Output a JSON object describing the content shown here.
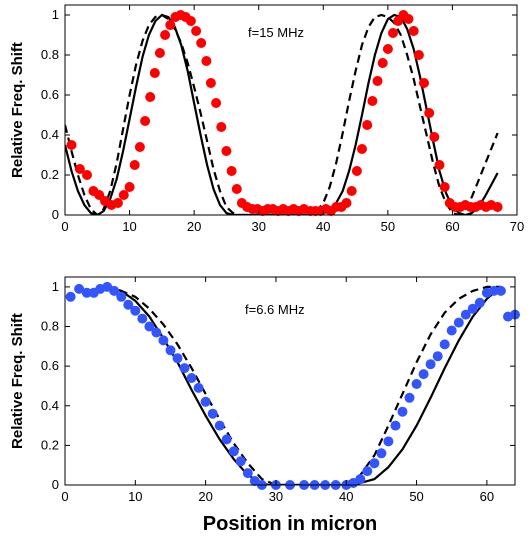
{
  "chart_data": [
    {
      "type": "line",
      "ylabel": "Relative Freq. Shift",
      "xlabel": "",
      "annotation": "f=15 MHz",
      "xlim": [
        0,
        70
      ],
      "ylim": [
        0,
        1.05
      ],
      "xticks": [
        "0",
        "10",
        "20",
        "30",
        "40",
        "50",
        "60",
        "70"
      ],
      "yticks": [
        "0",
        "0.2",
        "0.4",
        "0.6",
        "0.8",
        "1"
      ],
      "xtick_values": [
        0,
        10,
        20,
        30,
        40,
        50,
        60,
        70
      ],
      "ytick_values": [
        0,
        0.2,
        0.4,
        0.6,
        0.8,
        1
      ],
      "grid": false,
      "colors": {
        "marker": "#ff0000",
        "solid": "#000000",
        "dashed": "#000000"
      },
      "series": [
        {
          "style": "solid",
          "x": [
            0,
            1,
            2,
            3,
            4,
            5,
            6,
            7,
            8,
            9,
            10,
            11,
            12,
            13,
            14,
            15,
            16,
            17,
            18,
            19,
            20,
            21,
            22,
            23,
            24,
            25,
            26,
            27,
            28,
            29,
            30,
            31,
            32,
            33,
            34,
            35,
            36,
            37,
            38,
            39,
            40,
            41,
            42,
            43,
            44,
            45,
            46,
            47,
            48,
            49,
            50,
            51,
            52,
            53,
            54,
            55,
            56,
            57,
            58,
            59,
            60,
            61,
            62,
            63,
            64,
            65,
            66,
            67
          ],
          "y": [
            0.35,
            0.22,
            0.12,
            0.05,
            0.01,
            0,
            0.02,
            0.08,
            0.18,
            0.32,
            0.48,
            0.64,
            0.79,
            0.9,
            0.97,
            1,
            0.99,
            0.94,
            0.85,
            0.72,
            0.56,
            0.4,
            0.25,
            0.13,
            0.05,
            0.01,
            0,
            0,
            0,
            0,
            0,
            0,
            0,
            0,
            0,
            0,
            0,
            0,
            0,
            0,
            0.01,
            0.02,
            0.06,
            0.12,
            0.22,
            0.35,
            0.5,
            0.66,
            0.8,
            0.91,
            0.98,
            1,
            0.99,
            0.93,
            0.83,
            0.69,
            0.53,
            0.37,
            0.22,
            0.11,
            0.04,
            0.01,
            0,
            0.01,
            0.04,
            0.09,
            0.15,
            0.21
          ]
        },
        {
          "style": "dashed",
          "x": [
            0,
            1,
            2,
            3,
            4,
            5,
            6,
            7,
            8,
            9,
            10,
            11,
            12,
            13,
            14,
            15,
            16,
            17,
            18,
            19,
            20,
            21,
            22,
            23,
            24,
            25,
            26,
            27,
            28,
            29,
            30,
            31,
            32,
            33,
            34,
            35,
            36,
            37,
            38,
            39,
            40,
            41,
            42,
            43,
            44,
            45,
            46,
            47,
            48,
            49,
            50,
            51,
            52,
            53,
            54,
            55,
            56,
            57,
            58,
            59,
            60,
            61,
            62,
            63,
            64,
            65,
            66,
            67
          ],
          "y": [
            0.45,
            0.32,
            0.2,
            0.1,
            0.03,
            0,
            0.03,
            0.12,
            0.26,
            0.43,
            0.6,
            0.75,
            0.87,
            0.95,
            0.99,
            1,
            0.98,
            0.93,
            0.86,
            0.76,
            0.64,
            0.51,
            0.37,
            0.23,
            0.12,
            0.04,
            0.01,
            0,
            0,
            0,
            0,
            0,
            0,
            0,
            0,
            0,
            0,
            0,
            0,
            0.02,
            0.06,
            0.14,
            0.26,
            0.41,
            0.57,
            0.72,
            0.85,
            0.94,
            0.99,
            1,
            0.99,
            0.96,
            0.9,
            0.8,
            0.68,
            0.54,
            0.4,
            0.26,
            0.14,
            0.06,
            0.01,
            0,
            0.03,
            0.09,
            0.17,
            0.25,
            0.33,
            0.41
          ]
        },
        {
          "style": "marker",
          "x": [
            1,
            2.3,
            3.4,
            4.4,
            5.3,
            6.2,
            7.2,
            8.2,
            9.1,
            10,
            10.8,
            11.6,
            12.4,
            13.2,
            13.9,
            14.7,
            15.5,
            16.3,
            17.1,
            17.9,
            18.7,
            19.5,
            20.3,
            21.1,
            21.9,
            22.6,
            23.4,
            24.2,
            25,
            25.8,
            26.6,
            27.4,
            28.2,
            29,
            29.8,
            30.6,
            31.4,
            32.2,
            33,
            33.8,
            34.6,
            35.4,
            36.2,
            37,
            38,
            38.8,
            39.6,
            40.4,
            41.2,
            42,
            42.8,
            43.6,
            44.4,
            45.2,
            46,
            46.8,
            47.6,
            48.4,
            49.2,
            50,
            50.8,
            51.6,
            52.4,
            53.2,
            54,
            54.8,
            55.6,
            56.4,
            57.2,
            58,
            58.8,
            59.6,
            60.4,
            61.2,
            62,
            62.8,
            63.6,
            64.4,
            65.2,
            66,
            67
          ],
          "y": [
            0.35,
            0.23,
            0.2,
            0.12,
            0.1,
            0.07,
            0.05,
            0.06,
            0.1,
            0.14,
            0.25,
            0.34,
            0.47,
            0.59,
            0.71,
            0.81,
            0.9,
            0.95,
            0.99,
            1,
            0.99,
            0.97,
            0.92,
            0.86,
            0.77,
            0.66,
            0.56,
            0.44,
            0.32,
            0.22,
            0.13,
            0.06,
            0.04,
            0.03,
            0.03,
            0.02,
            0.03,
            0.03,
            0.02,
            0.03,
            0.02,
            0.03,
            0.02,
            0.03,
            0.02,
            0.02,
            0.02,
            0.03,
            0.02,
            0.04,
            0.04,
            0.06,
            0.12,
            0.22,
            0.33,
            0.45,
            0.57,
            0.67,
            0.76,
            0.83,
            0.91,
            0.97,
            1,
            0.98,
            0.92,
            0.8,
            0.66,
            0.51,
            0.39,
            0.25,
            0.14,
            0.06,
            0.04,
            0.04,
            0.05,
            0.04,
            0.04,
            0.05,
            0.04,
            0.05,
            0.04
          ]
        }
      ]
    },
    {
      "type": "line",
      "ylabel": "Relative Freq. Shift",
      "xlabel": "Position in micron",
      "annotation": "f=6.6 MHz",
      "xlim": [
        0,
        64
      ],
      "ylim": [
        0,
        1.05
      ],
      "xticks": [
        "0",
        "10",
        "20",
        "30",
        "40",
        "50",
        "60"
      ],
      "yticks": [
        "0",
        "0.2",
        "0.4",
        "0.6",
        "0.8",
        "1"
      ],
      "xtick_values": [
        0,
        10,
        20,
        30,
        40,
        50,
        60
      ],
      "ytick_values": [
        0,
        0.2,
        0.4,
        0.6,
        0.8,
        1
      ],
      "grid": false,
      "colors": {
        "marker": "#3355ff",
        "solid": "#000000",
        "dashed": "#000000"
      },
      "series": [
        {
          "style": "solid",
          "x": [
            6,
            8,
            10,
            12,
            14,
            16,
            18,
            20,
            22,
            24,
            26,
            28,
            29,
            30,
            32,
            34,
            36,
            38,
            40,
            41,
            42,
            44,
            46,
            48,
            50,
            52,
            54,
            56,
            58,
            60,
            62
          ],
          "y": [
            1,
            0.98,
            0.93,
            0.85,
            0.74,
            0.62,
            0.48,
            0.35,
            0.23,
            0.13,
            0.05,
            0.01,
            0,
            0,
            0,
            0,
            0,
            0,
            0,
            0,
            0.01,
            0.03,
            0.09,
            0.18,
            0.3,
            0.44,
            0.59,
            0.73,
            0.85,
            0.94,
            1
          ]
        },
        {
          "style": "dashed",
          "x": [
            6,
            8,
            10,
            12,
            14,
            16,
            18,
            20,
            22,
            24,
            26,
            28,
            30,
            32,
            34,
            36,
            38,
            40,
            42,
            44,
            46,
            48,
            50,
            52,
            54,
            56,
            58,
            60,
            62
          ],
          "y": [
            1,
            0.98,
            0.95,
            0.89,
            0.81,
            0.71,
            0.59,
            0.46,
            0.33,
            0.21,
            0.11,
            0.03,
            0,
            0,
            0,
            0,
            0,
            0.01,
            0.05,
            0.15,
            0.3,
            0.46,
            0.62,
            0.76,
            0.87,
            0.94,
            0.98,
            1,
            1
          ]
        },
        {
          "style": "marker",
          "x": [
            0.8,
            2,
            3.1,
            4.1,
            5,
            6,
            7,
            8,
            9,
            10,
            11,
            12,
            13,
            14,
            15,
            16,
            17,
            18,
            19,
            20,
            21,
            22,
            23,
            24,
            25,
            26,
            27,
            28,
            30,
            32,
            34,
            35.5,
            37,
            38.5,
            40,
            41,
            42,
            43,
            44,
            45,
            46,
            47,
            48,
            49,
            50,
            51,
            52,
            53,
            54,
            55,
            56,
            57,
            58,
            59,
            60,
            61,
            62,
            63,
            64
          ],
          "y": [
            0.95,
            0.99,
            0.97,
            0.97,
            0.99,
            1,
            0.98,
            0.95,
            0.91,
            0.88,
            0.84,
            0.8,
            0.77,
            0.73,
            0.68,
            0.64,
            0.59,
            0.54,
            0.49,
            0.42,
            0.36,
            0.3,
            0.23,
            0.17,
            0.12,
            0.06,
            0.02,
            0,
            0,
            0,
            0,
            0,
            0,
            0,
            0,
            0.01,
            0.03,
            0.07,
            0.11,
            0.16,
            0.22,
            0.3,
            0.37,
            0.44,
            0.51,
            0.56,
            0.61,
            0.65,
            0.71,
            0.78,
            0.82,
            0.86,
            0.89,
            0.92,
            0.97,
            0.98,
            0.98,
            0.85,
            0.86
          ]
        }
      ]
    }
  ]
}
